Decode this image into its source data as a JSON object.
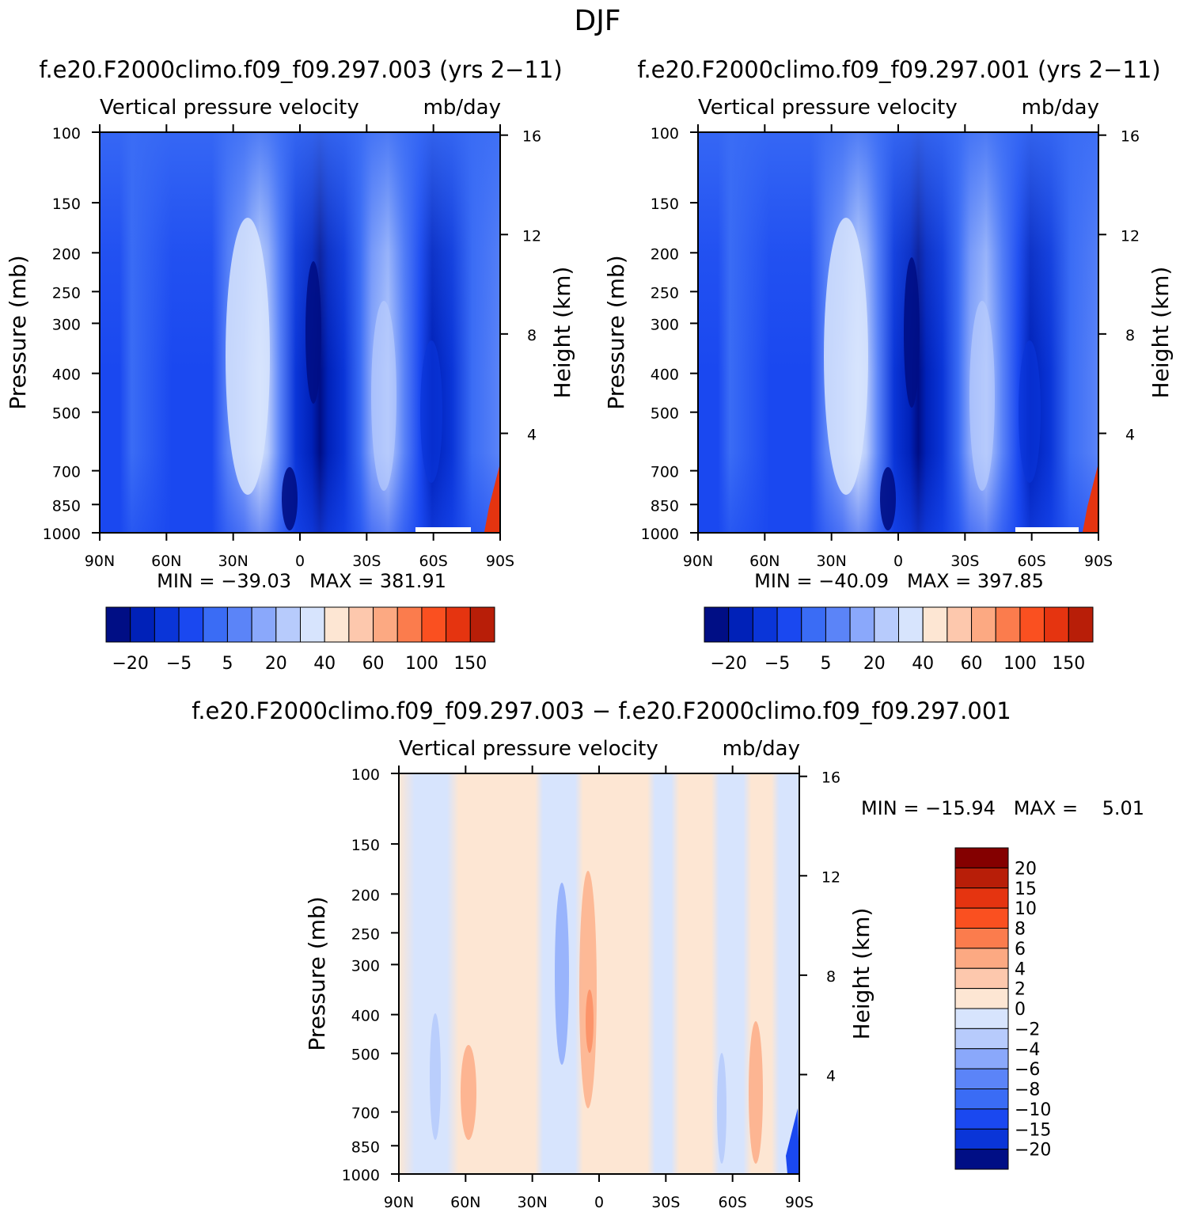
{
  "title": "DJF",
  "palette": {
    "blues": [
      "#000e85",
      "#0021b8",
      "#0a35d8",
      "#1a48f0",
      "#3a6cf5",
      "#5b84f8",
      "#8aa8fb",
      "#b7cbfc",
      "#d7e4fd"
    ],
    "reds": [
      "#fde6d3",
      "#fdc8ad",
      "#fca982",
      "#fb7c4d",
      "#fa5020",
      "#e53410",
      "#b81e08",
      "#840000"
    ]
  },
  "chart_data": [
    {
      "type": "heatmap",
      "title": "f.e20.F2000climo.f09_f09.297.003 (yrs 2−11)",
      "subtitle_left": "Vertical pressure velocity",
      "subtitle_right": "mb/day",
      "ylabel": "Pressure (mb)",
      "y2label": "Height (km)",
      "x_ticks": [
        "90N",
        "60N",
        "30N",
        "0",
        "30S",
        "60S",
        "90S"
      ],
      "y_ticks": [
        "100",
        "150",
        "200",
        "250",
        "300",
        "400",
        "500",
        "700",
        "850",
        "1000"
      ],
      "y_tick_values": [
        100,
        150,
        200,
        250,
        300,
        400,
        500,
        700,
        850,
        1000
      ],
      "y2_ticks": [
        "16",
        "12",
        "8",
        "4"
      ],
      "y2_tick_values": [
        16,
        12,
        8,
        4
      ],
      "ylim": [
        1000,
        100
      ],
      "xlim": [
        90,
        -90
      ],
      "scale": "log-pressure",
      "minmax_text": "MIN = −39.03   MAX = 381.91",
      "min": -39.03,
      "max": 381.91,
      "colorbar": {
        "orientation": "horizontal",
        "labels": [
          "−20",
          "−5",
          "5",
          "20",
          "40",
          "60",
          "100",
          "150"
        ],
        "levels": [
          -20,
          -15,
          -10,
          -5,
          0,
          5,
          10,
          20,
          30,
          40,
          50,
          60,
          80,
          100,
          150
        ],
        "colors": [
          "#000e85",
          "#0021b8",
          "#0a35d8",
          "#1a48f0",
          "#3a6cf5",
          "#5b84f8",
          "#8aa8fb",
          "#b7cbfc",
          "#d7e4fd",
          "#fde6d3",
          "#fdc8ad",
          "#fca982",
          "#fb7c4d",
          "#fa5020",
          "#e53410",
          "#b81e08"
        ]
      }
    },
    {
      "type": "heatmap",
      "title": "f.e20.F2000climo.f09_f09.297.001 (yrs 2−11)",
      "subtitle_left": "Vertical pressure velocity",
      "subtitle_right": "mb/day",
      "ylabel": "Pressure (mb)",
      "y2label": "Height (km)",
      "x_ticks": [
        "90N",
        "60N",
        "30N",
        "0",
        "30S",
        "60S",
        "90S"
      ],
      "y_ticks": [
        "100",
        "150",
        "200",
        "250",
        "300",
        "400",
        "500",
        "700",
        "850",
        "1000"
      ],
      "y2_ticks": [
        "16",
        "12",
        "8",
        "4"
      ],
      "ylim": [
        1000,
        100
      ],
      "xlim": [
        90,
        -90
      ],
      "minmax_text": "MIN = −40.09   MAX = 397.85",
      "min": -40.09,
      "max": 397.85,
      "colorbar": {
        "orientation": "horizontal",
        "labels": [
          "−20",
          "−5",
          "5",
          "20",
          "40",
          "60",
          "100",
          "150"
        ]
      }
    },
    {
      "type": "heatmap",
      "title": "f.e20.F2000climo.f09_f09.297.003 − f.e20.F2000climo.f09_f09.297.001",
      "subtitle_left": "Vertical pressure velocity",
      "subtitle_right": "mb/day",
      "ylabel": "Pressure (mb)",
      "y2label": "Height (km)",
      "x_ticks": [
        "90N",
        "60N",
        "30N",
        "0",
        "30S",
        "60S",
        "90S"
      ],
      "y_ticks": [
        "100",
        "150",
        "200",
        "250",
        "300",
        "400",
        "500",
        "700",
        "850",
        "1000"
      ],
      "y2_ticks": [
        "16",
        "12",
        "8",
        "4"
      ],
      "ylim": [
        1000,
        100
      ],
      "xlim": [
        90,
        -90
      ],
      "minmax_text": "MIN = −15.94   MAX =    5.01",
      "min": -15.94,
      "max": 5.01,
      "colorbar": {
        "orientation": "vertical",
        "labels": [
          "20",
          "15",
          "10",
          "8",
          "6",
          "4",
          "2",
          "0",
          "−2",
          "−4",
          "−6",
          "−8",
          "−10",
          "−15",
          "−20"
        ],
        "levels": [
          -20,
          -15,
          -10,
          -8,
          -6,
          -4,
          -2,
          0,
          2,
          4,
          6,
          8,
          10,
          15,
          20
        ],
        "colors": [
          "#840000",
          "#b81e08",
          "#e53410",
          "#fa5020",
          "#fb7c4d",
          "#fca982",
          "#fdc8ad",
          "#fde6d3",
          "#d7e4fd",
          "#b7cbfc",
          "#8aa8fb",
          "#5b84f8",
          "#3a6cf5",
          "#1a48f0",
          "#0a35d8",
          "#000e85"
        ]
      }
    }
  ]
}
